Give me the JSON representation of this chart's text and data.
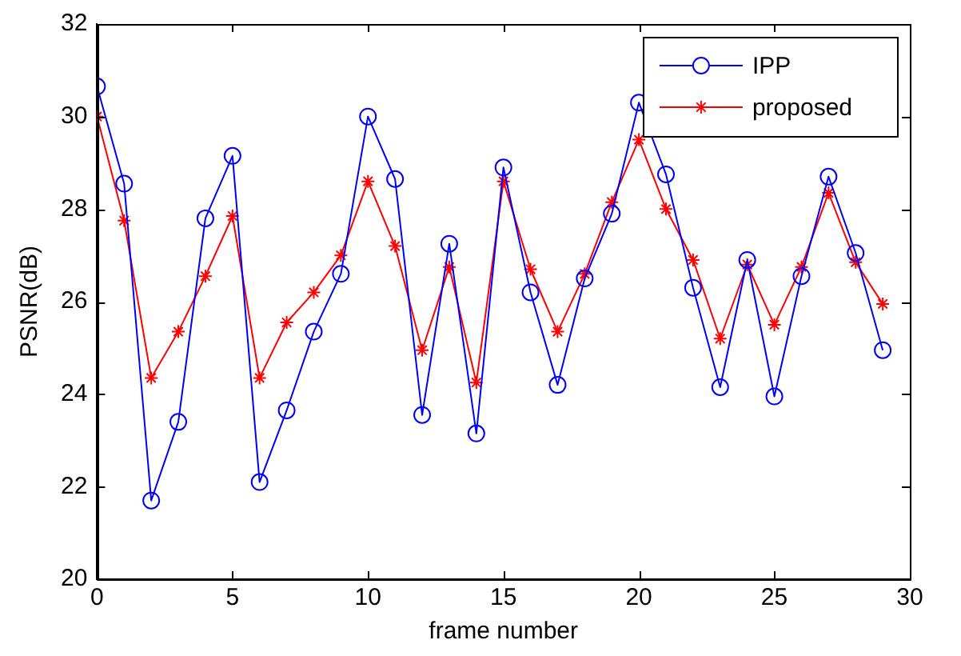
{
  "chart_data": {
    "type": "line",
    "xlabel": "frame number",
    "ylabel": "PSNR(dB)",
    "x": [
      0,
      1,
      2,
      3,
      4,
      5,
      6,
      7,
      8,
      9,
      10,
      11,
      12,
      13,
      14,
      15,
      16,
      17,
      18,
      19,
      20,
      21,
      22,
      23,
      24,
      25,
      26,
      27,
      28,
      29
    ],
    "series": [
      {
        "name": "IPP",
        "color": "#0000ff",
        "marker": "circle",
        "values": [
          30.65,
          28.55,
          21.7,
          23.4,
          27.8,
          29.15,
          22.1,
          23.65,
          25.35,
          26.6,
          30.0,
          28.65,
          23.55,
          27.25,
          23.15,
          28.9,
          26.2,
          24.2,
          26.5,
          27.9,
          30.3,
          28.75,
          26.3,
          24.15,
          26.9,
          23.95,
          26.55,
          28.7,
          27.05,
          24.95
        ]
      },
      {
        "name": "proposed",
        "color": "#ff0000",
        "marker": "cross",
        "values": [
          30.0,
          27.75,
          24.35,
          25.35,
          26.55,
          27.85,
          24.35,
          25.55,
          26.2,
          27.0,
          28.6,
          27.2,
          24.95,
          26.75,
          24.25,
          28.6,
          26.7,
          25.35,
          26.6,
          28.15,
          29.5,
          28.0,
          26.9,
          25.2,
          26.8,
          25.5,
          26.75,
          28.35,
          26.85,
          25.95
        ]
      }
    ],
    "xlim": [
      0,
      30
    ],
    "xticks": [
      0,
      5,
      10,
      15,
      20,
      25,
      30
    ],
    "ylim": [
      20,
      32
    ],
    "yticks": [
      20,
      22,
      24,
      26,
      28,
      30,
      32
    ],
    "grid": false,
    "legend": "top right",
    "line_style": "solid"
  }
}
